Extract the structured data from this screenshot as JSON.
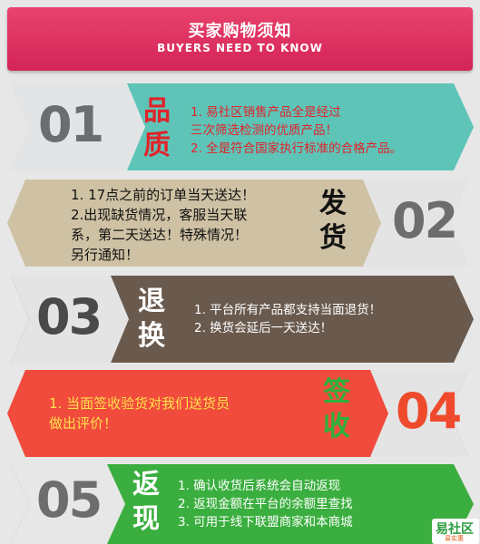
{
  "header": {
    "title": "买家购物须知",
    "subtitle": "BUYERS NEED TO KNOW"
  },
  "sections": [
    {
      "number": "01",
      "heading": [
        "品",
        "质"
      ],
      "lines": [
        "1. 易社区销售产品全是经过",
        "三次筛选检测的优质产品！",
        "2. 全是符合国家执行标准的合格产品。"
      ],
      "color": "#5ec4b8"
    },
    {
      "number": "02",
      "heading": [
        "发",
        "货"
      ],
      "lines": [
        "1. 17点之前的订单当天送达！",
        "2.出现缺货情况，客服当天联",
        "系，第二天送达！特殊情况！",
        "另行通知！"
      ],
      "color": "#cfc2a4"
    },
    {
      "number": "03",
      "heading": [
        "退",
        "换"
      ],
      "lines": [
        "1. 平台所有产品都支持当面退货！",
        "2. 换货会延后一天送达！"
      ],
      "color": "#6a5a4e"
    },
    {
      "number": "04",
      "heading": [
        "签",
        "收"
      ],
      "lines": [
        "1. 当面签收验货对我们送货员",
        "做出评价！"
      ],
      "color": "#f04b3c"
    },
    {
      "number": "05",
      "heading": [
        "返",
        "现"
      ],
      "lines": [
        "1. 确认收货后系统会自动返现",
        "2. 返现金额在平台的余额里查找",
        "3. 可用于线下联盟商家和本商城"
      ],
      "color": "#3aae3e"
    }
  ],
  "logo": {
    "name": "易社区",
    "tagline": "易实惠"
  }
}
